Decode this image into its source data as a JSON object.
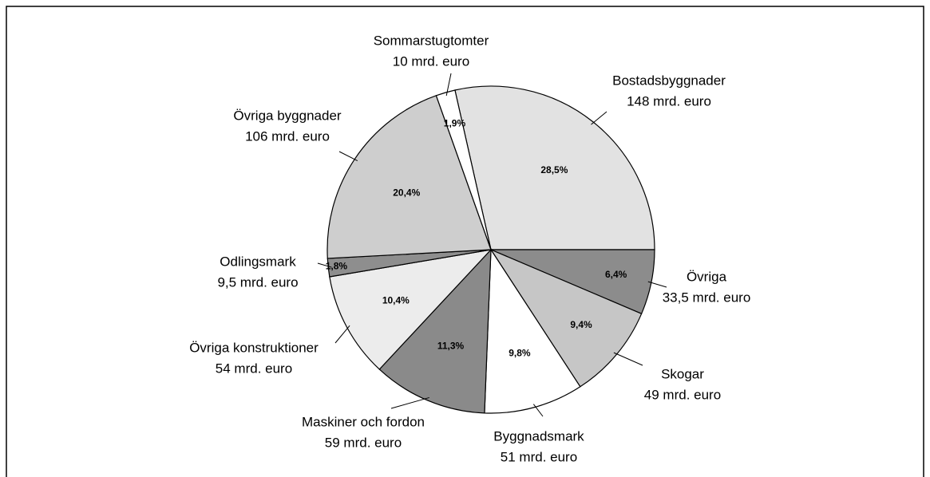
{
  "chart_data": {
    "type": "pie",
    "categories": [
      "Bostadsbyggnader",
      "Övriga",
      "Skogar",
      "Byggnadsmark",
      "Maskiner och fordon",
      "Övriga konstruktioner",
      "Odlingsmark",
      "Övriga byggnader",
      "Sommarstugtomter"
    ],
    "values": [
      28.5,
      6.4,
      9.4,
      9.8,
      11.3,
      10.4,
      1.8,
      20.4,
      1.9
    ],
    "value_labels": [
      "28,5%",
      "6,4%",
      "9,4%",
      "9,8%",
      "11,3%",
      "10,4%",
      "1,8%",
      "20,4%",
      "1,9%"
    ],
    "amount_labels": [
      "148 mrd. euro",
      "33,5 mrd. euro",
      "49 mrd. euro",
      "51 mrd. euro",
      "59 mrd. euro",
      "54 mrd. euro",
      "9,5 mrd. euro",
      "106 mrd. euro",
      "10 mrd. euro"
    ],
    "colors": [
      "#e2e2e2",
      "#8c8c8c",
      "#c6c6c6",
      "#ffffff",
      "#8a8a8a",
      "#ececec",
      "#8e8e8e",
      "#cecece",
      "#ffffff"
    ]
  }
}
